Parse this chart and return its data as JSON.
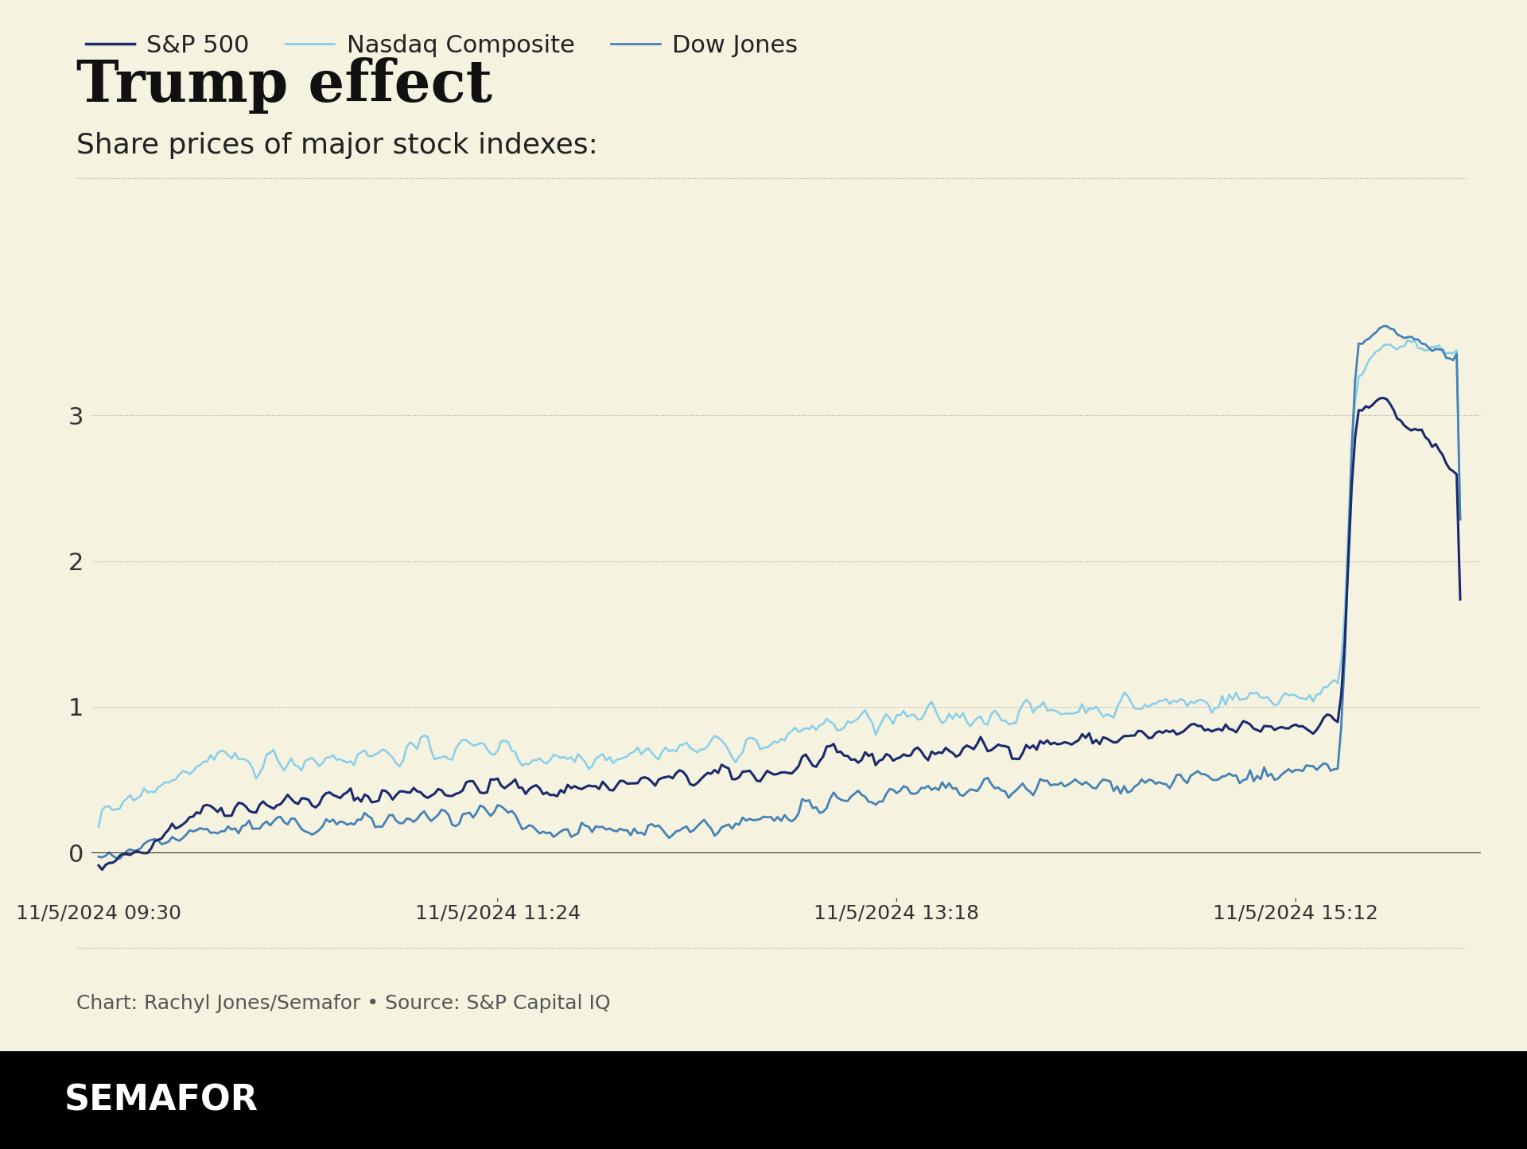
{
  "title": "Trump effect",
  "subtitle": "Share prices of major stock indexes:",
  "background_color": "#f5f2e0",
  "footer_text": "Chart: Rachyl Jones/Semafor • Source: S&P Capital IQ",
  "brand_text": "SEMAFOR",
  "brand_bg": "#000000",
  "brand_fg": "#ffffff",
  "yticks": [
    0,
    1,
    2,
    3
  ],
  "ylim": [
    -0.3,
    3.8
  ],
  "xlabel_times": [
    "11/5/2024 09:30",
    "11/5/2024 11:24",
    "11/5/2024 13:18",
    "11/5/2024 15:12"
  ],
  "series": {
    "sp500": {
      "color": "#1a2a6c",
      "label": "S&P 500",
      "linewidth": 2.2
    },
    "nasdaq": {
      "color": "#87ceeb",
      "label": "Nasdaq Composite",
      "linewidth": 1.8
    },
    "dow": {
      "color": "#4682b4",
      "label": "Dow Jones",
      "linewidth": 2.0
    }
  }
}
